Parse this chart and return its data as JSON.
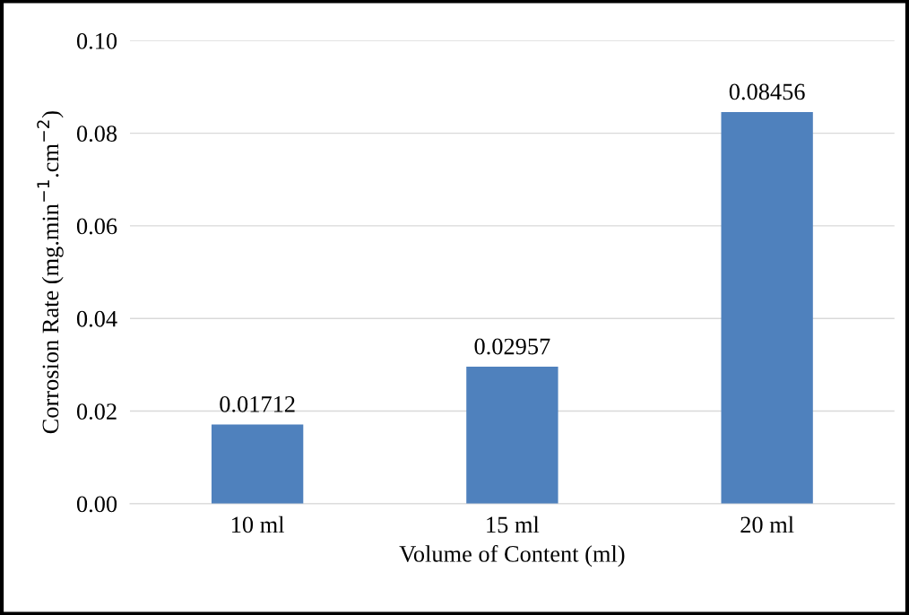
{
  "chart_data": {
    "type": "bar",
    "xlabel": "Volume of Content (ml)",
    "ylabel": "Corrosion Rate (mg.min$^{−1}$.cm$^{−2}$)",
    "categories": [
      "10 ml",
      "15 ml",
      "20 ml"
    ],
    "values": [
      0.01712,
      0.02957,
      0.08456
    ],
    "color": "#4f81bd",
    "ylim": [
      0,
      0.1
    ],
    "yticks": [
      {
        "value": 0,
        "label": "0.00"
      },
      {
        "value": 0.02,
        "label": "0.02"
      },
      {
        "value": 0.04,
        "label": "0.04"
      },
      {
        "value": 0.06,
        "label": "0.06"
      },
      {
        "value": 0.08,
        "label": "0.08"
      },
      {
        "value": 0.1,
        "label": "0.10"
      }
    ],
    "grid": "y",
    "data_labels": true,
    "legend": false
  }
}
